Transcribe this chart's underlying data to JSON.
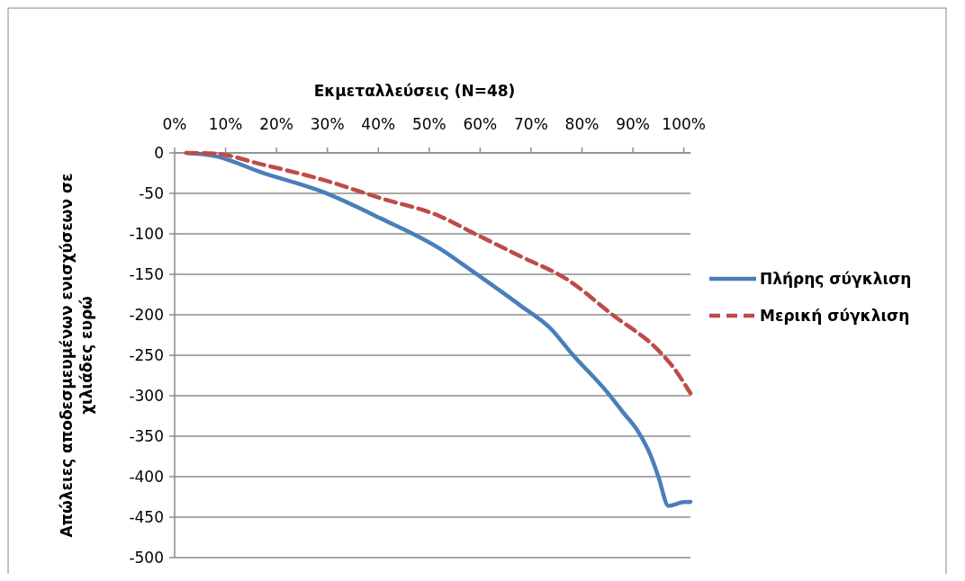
{
  "chart_data": {
    "type": "line",
    "xlabel": "Εκμεταλλεύσεις (N=48)",
    "ylabel": "Απώλειες αποδεσμευμένων ενισχύσεων σε χιλιάδες ευρώ",
    "xlim": [
      0,
      101.3
    ],
    "xticks": [
      {
        "value": 0,
        "label": "0%"
      },
      {
        "value": 10,
        "label": "10%"
      },
      {
        "value": 20,
        "label": "20%"
      },
      {
        "value": 30,
        "label": "30%"
      },
      {
        "value": 40,
        "label": "40%"
      },
      {
        "value": 50,
        "label": "50%"
      },
      {
        "value": 60,
        "label": "60%"
      },
      {
        "value": 70,
        "label": "70%"
      },
      {
        "value": 80,
        "label": "80%"
      },
      {
        "value": 90,
        "label": "90%"
      },
      {
        "value": 100,
        "label": "100%"
      }
    ],
    "ylim": [
      -500,
      0
    ],
    "yticks": [
      0,
      -50,
      -100,
      -150,
      -200,
      -250,
      -300,
      -350,
      -400,
      -450,
      -500
    ],
    "grid": "y",
    "legend": "right",
    "series": [
      {
        "name": "Πλήρης σύγκλιση",
        "color": "#4a7ebb",
        "line_style": "solid",
        "x": [
          2.3,
          8,
          17,
          29,
          40.5,
          52,
          58,
          68,
          74,
          78,
          85,
          88,
          91,
          93.5,
          95,
          97,
          99.5,
          101.3
        ],
        "values": [
          0,
          -4,
          -24,
          -48,
          -81,
          -118,
          -144,
          -189,
          -218,
          -248,
          -296,
          -320,
          -344,
          -374,
          -400,
          -436,
          -432,
          -431
        ]
      },
      {
        "name": "Μερική σύγκλιση",
        "color": "#be4b48",
        "line_style": "dashed",
        "x": [
          2.3,
          8,
          17,
          29,
          40.5,
          52,
          59,
          68,
          77,
          86,
          95,
          97.7,
          101.3
        ],
        "values": [
          0,
          -1,
          -14,
          -33,
          -56,
          -78,
          -100,
          -128,
          -156,
          -200,
          -244,
          -263,
          -297
        ]
      }
    ]
  }
}
